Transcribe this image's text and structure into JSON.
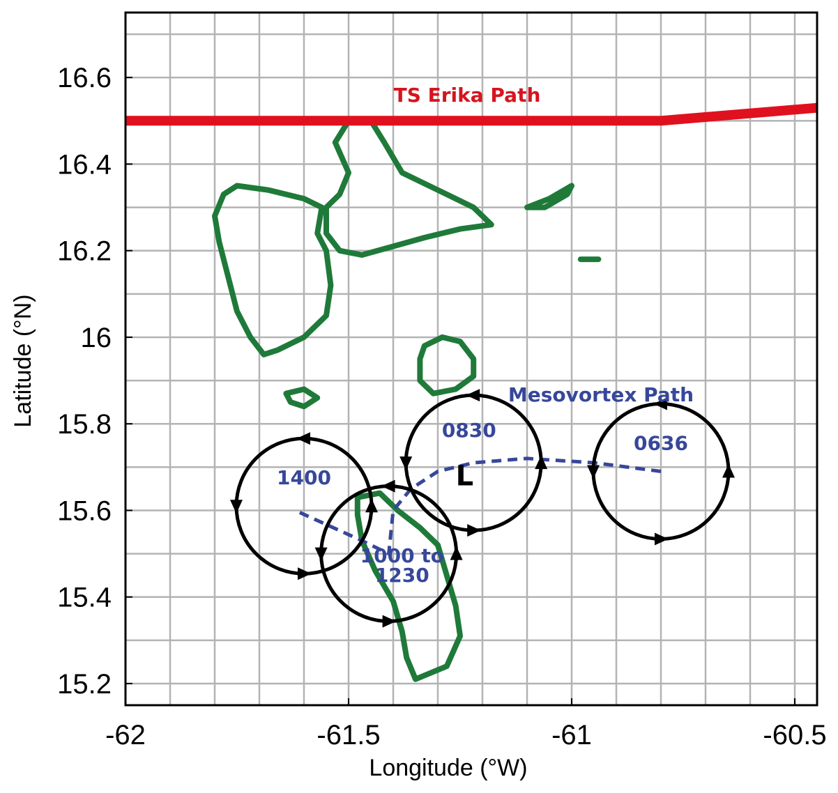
{
  "chart_data": {
    "type": "map",
    "xlabel": "Longitude (°W)",
    "ylabel": "Latitude (°N)",
    "xlim": [
      -62,
      -60.45
    ],
    "ylim": [
      15.15,
      16.75
    ],
    "x_ticks": [
      "-62",
      "-61.5",
      "-61",
      "-60.5"
    ],
    "y_ticks": [
      "15.2",
      "15.4",
      "15.6",
      "15.8",
      "16",
      "16.2",
      "16.4",
      "16.6"
    ],
    "grid": true,
    "grid_x_step": 0.1,
    "grid_y_step": 0.1,
    "colors": {
      "storm_path": "#e0111f",
      "coastline": "#1f7a3a",
      "mesovortex": "#37479a",
      "vortex_circle": "#000000",
      "grid": "#b3b3b3"
    },
    "storm_path": {
      "label": "TS Erika Path",
      "points": [
        [
          -62,
          16.5
        ],
        [
          -60.8,
          16.5
        ],
        [
          -60.45,
          16.53
        ]
      ]
    },
    "mesovortex_path": {
      "label": "Mesovortex Path",
      "points": [
        [
          -60.8,
          15.69
        ],
        [
          -60.95,
          15.71
        ],
        [
          -61.1,
          15.72
        ],
        [
          -61.22,
          15.71
        ],
        [
          -61.3,
          15.69
        ],
        [
          -61.36,
          15.65
        ],
        [
          -61.4,
          15.6
        ],
        [
          -61.41,
          15.5
        ],
        [
          -61.47,
          15.53
        ],
        [
          -61.62,
          15.6
        ]
      ]
    },
    "vortices": [
      {
        "time": "0636",
        "lon": -60.8,
        "lat": 15.69,
        "label_pos": [
          -60.8,
          15.74
        ]
      },
      {
        "time": "0830",
        "lon": -61.22,
        "lat": 15.71,
        "label_pos": [
          -61.23,
          15.77
        ]
      },
      {
        "time": "1000 to\n1230",
        "lon": -61.41,
        "lat": 15.5,
        "label_pos": [
          -61.38,
          15.48
        ]
      },
      {
        "time": "1400",
        "lon": -61.6,
        "lat": 15.61,
        "label_pos": [
          -61.6,
          15.66
        ]
      }
    ],
    "vortex_labels": [
      "0636",
      "0830",
      "1000 to",
      "1230",
      "1400"
    ],
    "low_marker": {
      "label": "L",
      "lon": -61.24,
      "lat": 15.68
    }
  }
}
